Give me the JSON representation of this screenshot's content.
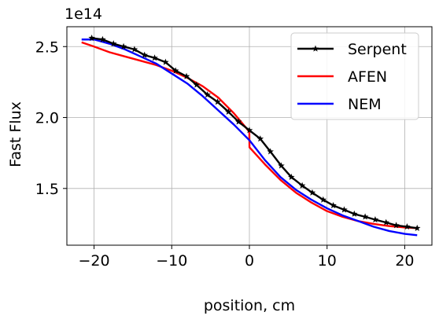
{
  "chart_data": {
    "type": "line",
    "xlabel": "position, cm",
    "ylabel": "Fast Flux",
    "offset_text": "1e14",
    "xlim": [
      -23.5,
      23.5
    ],
    "ylim": [
      1.1,
      2.64
    ],
    "x_ticks": [
      -20,
      -10,
      0,
      10,
      20
    ],
    "x_tick_labels": [
      "−20",
      "−10",
      "0",
      "10",
      "20"
    ],
    "y_ticks": [
      1.5,
      2.0,
      2.5
    ],
    "y_tick_labels": [
      "1.5",
      "2.0",
      "2.5"
    ],
    "grid": true,
    "legend_position": "upper right",
    "series": [
      {
        "name": "Serpent",
        "color": "#000000",
        "marker": "star",
        "x": [
          -20.3,
          -18.9,
          -17.5,
          -16.2,
          -14.8,
          -13.5,
          -12.2,
          -10.8,
          -9.5,
          -8.1,
          -6.8,
          -5.4,
          -4.1,
          -2.7,
          -1.4,
          0.0,
          1.4,
          2.7,
          4.1,
          5.4,
          6.8,
          8.1,
          9.5,
          10.8,
          12.2,
          13.5,
          14.9,
          16.2,
          17.6,
          18.9,
          20.3,
          21.6
        ],
        "values": [
          2.56,
          2.55,
          2.52,
          2.5,
          2.48,
          2.44,
          2.42,
          2.39,
          2.33,
          2.29,
          2.23,
          2.16,
          2.11,
          2.04,
          1.97,
          1.91,
          1.85,
          1.76,
          1.66,
          1.58,
          1.52,
          1.47,
          1.42,
          1.38,
          1.35,
          1.32,
          1.3,
          1.28,
          1.26,
          1.24,
          1.23,
          1.22
        ]
      },
      {
        "name": "AFEN",
        "color": "#ff0000",
        "x": [
          -21.6,
          -20,
          -18,
          -16,
          -14,
          -12,
          -10,
          -8,
          -6,
          -4,
          -2,
          -0.01,
          0.01,
          2,
          4,
          6,
          8,
          10,
          12,
          14,
          16,
          18,
          20,
          21.6
        ],
        "values": [
          2.53,
          2.5,
          2.46,
          2.43,
          2.4,
          2.37,
          2.33,
          2.28,
          2.22,
          2.14,
          2.03,
          1.9,
          1.79,
          1.67,
          1.56,
          1.47,
          1.4,
          1.34,
          1.3,
          1.27,
          1.25,
          1.235,
          1.225,
          1.22
        ]
      },
      {
        "name": "NEM",
        "color": "#0000ff",
        "x": [
          -21.6,
          -20,
          -18,
          -16,
          -14,
          -12,
          -10,
          -8,
          -6,
          -4,
          -2,
          0,
          2,
          4,
          6,
          8,
          10,
          12,
          14,
          16,
          18,
          20,
          21.6
        ],
        "values": [
          2.55,
          2.55,
          2.52,
          2.48,
          2.43,
          2.38,
          2.31,
          2.24,
          2.15,
          2.05,
          1.95,
          1.84,
          1.7,
          1.58,
          1.49,
          1.42,
          1.36,
          1.31,
          1.27,
          1.23,
          1.2,
          1.18,
          1.17
        ]
      }
    ]
  }
}
